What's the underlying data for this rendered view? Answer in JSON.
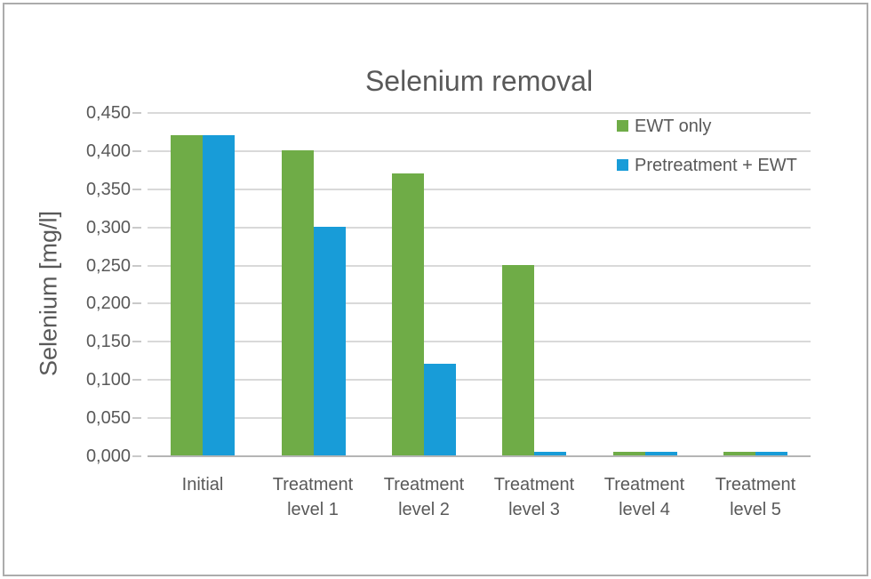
{
  "chart_data": {
    "type": "bar",
    "title": "Selenium removal",
    "ylabel": "Selenium [mg/l]",
    "xlabel": "",
    "categories": [
      "Initial",
      "Treatment level 1",
      "Treatment level 2",
      "Treatment level 3",
      "Treatment level 4",
      "Treatment level 5"
    ],
    "category_lines": [
      [
        "Initial"
      ],
      [
        "Treatment",
        "level 1"
      ],
      [
        "Treatment",
        "level 2"
      ],
      [
        "Treatment",
        "level 3"
      ],
      [
        "Treatment",
        "level 4"
      ],
      [
        "Treatment",
        "level 5"
      ]
    ],
    "series": [
      {
        "name": "EWT only",
        "color": "#6fac47",
        "values": [
          0.42,
          0.4,
          0.37,
          0.25,
          0.005,
          0.005
        ]
      },
      {
        "name": "Pretreatment + EWT",
        "color": "#189cd8",
        "values": [
          0.42,
          0.3,
          0.12,
          0.005,
          0.005,
          0.005
        ]
      }
    ],
    "ylim": [
      0,
      0.45
    ],
    "y_tick_values": [
      0,
      0.05,
      0.1,
      0.15,
      0.2,
      0.25,
      0.3,
      0.35,
      0.4,
      0.45
    ],
    "y_tick_labels": [
      "0,000",
      "0,050",
      "0,100",
      "0,150",
      "0,200",
      "0,250",
      "0,300",
      "0,350",
      "0,400",
      "0,450"
    ],
    "decimal_separator": ",",
    "grid": true,
    "legend_position": "top-right-inside"
  },
  "colors": {
    "text": "#595959",
    "gridline": "#d9d9d9",
    "axis_line": "#b5b5b5",
    "tick_mark": "#c9c9c9",
    "frame_border": "#acacac",
    "background": "#ffffff"
  }
}
